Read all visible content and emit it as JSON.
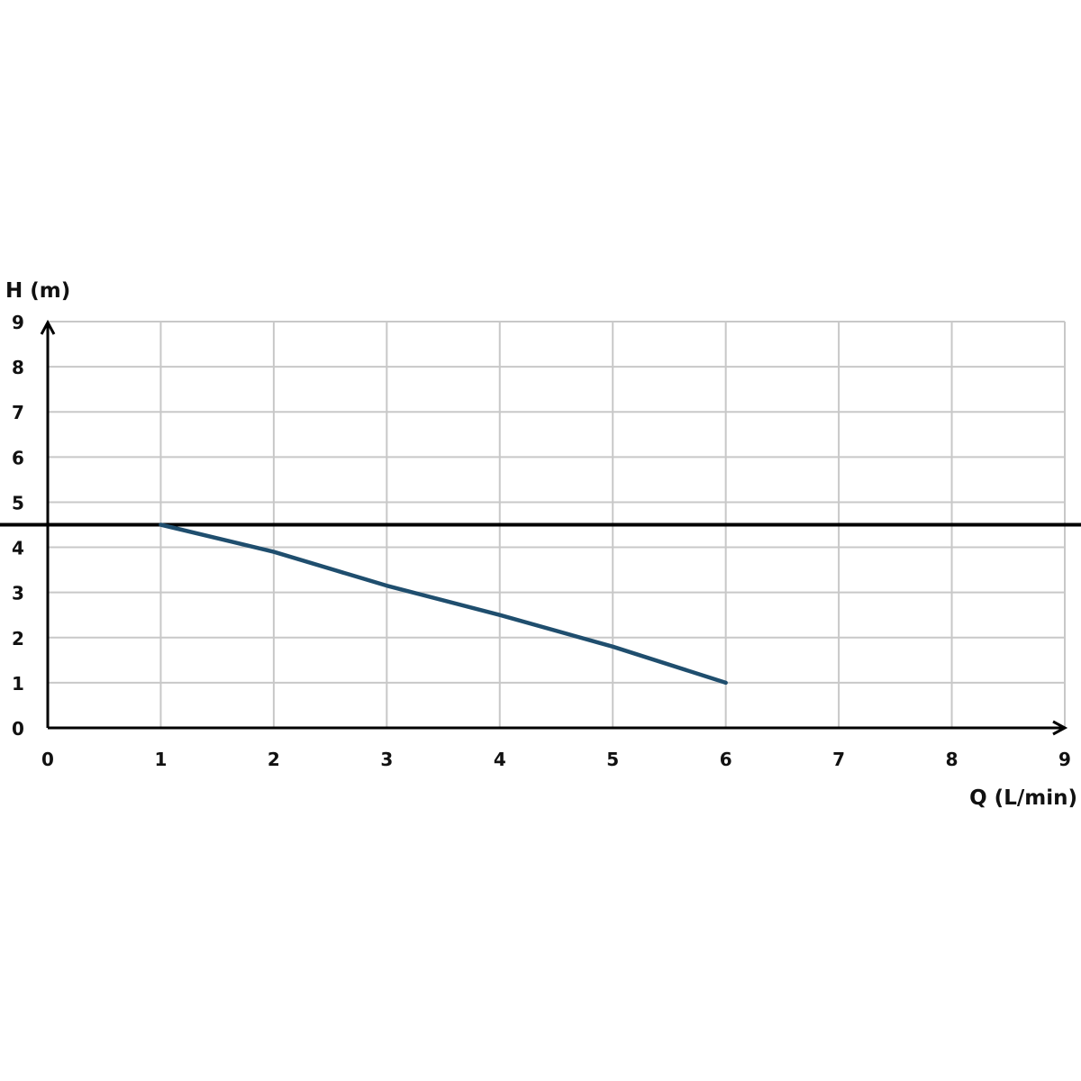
{
  "chart_data": {
    "type": "line",
    "xlabel": "Q (L/min)",
    "ylabel": "H (m)",
    "xlim": [
      0,
      9
    ],
    "ylim": [
      0,
      9
    ],
    "x_ticks": [
      "0",
      "1",
      "2",
      "3",
      "4",
      "5",
      "6",
      "7",
      "8",
      "9"
    ],
    "y_ticks": [
      "0",
      "1",
      "2",
      "3",
      "4",
      "5",
      "6",
      "7",
      "8",
      "9"
    ],
    "grid": true,
    "reference_line": {
      "y": 4.5,
      "color": "#000000"
    },
    "series": [
      {
        "x": [
          1,
          2,
          3,
          4,
          5,
          6
        ],
        "y": [
          4.5,
          3.9,
          3.15,
          2.5,
          1.8,
          1.0
        ],
        "color": "#1f4e6e"
      }
    ]
  }
}
